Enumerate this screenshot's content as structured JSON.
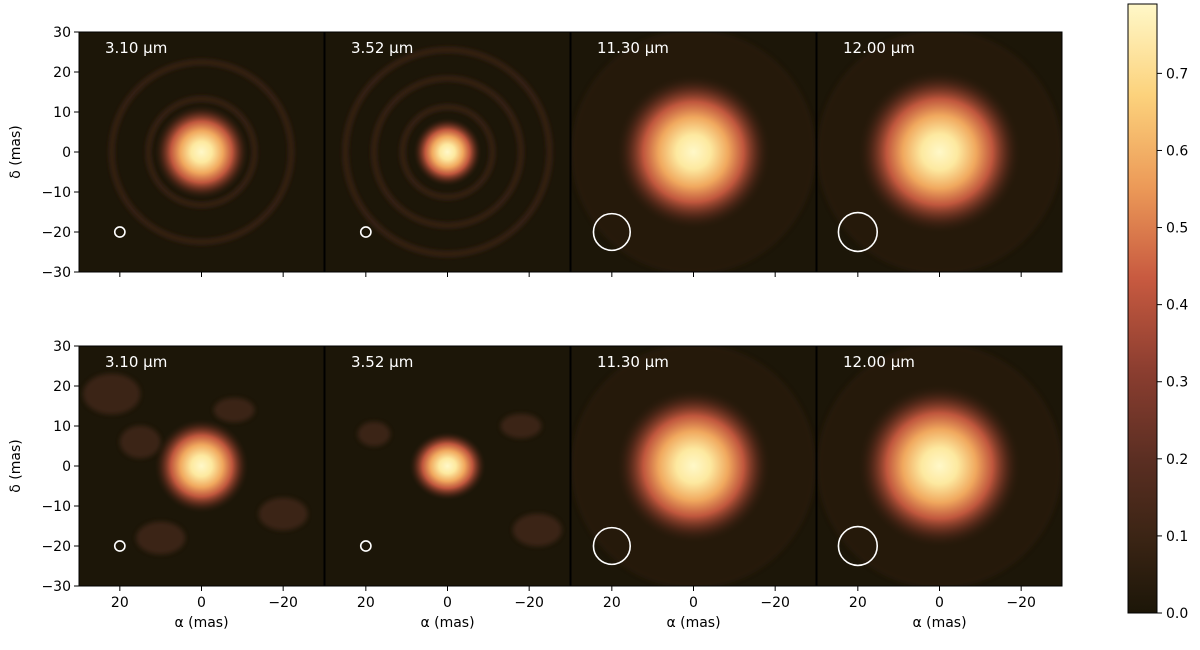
{
  "chart_data": {
    "type": "heatmap",
    "xlabel": "α (mas)",
    "ylabel": "δ (mas)",
    "xlim": [
      30,
      -30
    ],
    "ylim": [
      -30,
      30
    ],
    "x_ticks": [
      20,
      0,
      -20
    ],
    "x_tick_labels": [
      "20",
      "0",
      "−20"
    ],
    "y_ticks": [
      30,
      20,
      10,
      0,
      -10,
      -20,
      -30
    ],
    "y_tick_labels": [
      "30",
      "20",
      "10",
      "0",
      "−10",
      "−20",
      "−30"
    ],
    "colormap": "afmhot-like",
    "colors": {
      "low": "#1c1608",
      "mid": "#c85a40",
      "high": "#fff8c8",
      "beam": "#ffffff"
    },
    "colorbar": {
      "range": [
        0.0,
        0.79
      ],
      "ticks": [
        0.0,
        0.1,
        0.2,
        0.3,
        0.4,
        0.5,
        0.6,
        0.7
      ],
      "tick_labels": [
        "0.0",
        "0.1",
        "0.2",
        "0.3",
        "0.4",
        "0.5",
        "0.6",
        "0.7"
      ]
    },
    "rows": [
      {
        "panels": [
          {
            "label": "3.10 μm",
            "peak": 0.79,
            "fwhm_mas": 11,
            "rings": true,
            "beam": {
              "x": 20,
              "y": -20,
              "d": 2.5
            }
          },
          {
            "label": "3.52 μm",
            "peak": 0.79,
            "fwhm_mas": 8,
            "rings": true,
            "beam": {
              "x": 20,
              "y": -20,
              "d": 2.5
            }
          },
          {
            "label": "11.30 μm",
            "peak": 0.79,
            "fwhm_mas": 18,
            "rings": false,
            "beam": {
              "x": 20,
              "y": -20,
              "d": 9
            }
          },
          {
            "label": "12.00 μm",
            "peak": 0.79,
            "fwhm_mas": 19,
            "rings": false,
            "beam": {
              "x": 20,
              "y": -20,
              "d": 9.5
            }
          }
        ]
      },
      {
        "panels": [
          {
            "label": "3.10 μm",
            "peak": 0.79,
            "fwhm_mas": 11,
            "rings": false,
            "beam": {
              "x": 20,
              "y": -20,
              "d": 2.5
            }
          },
          {
            "label": "3.52 μm",
            "peak": 0.79,
            "fwhm_mas": 8,
            "rings": false,
            "beam": {
              "x": 20,
              "y": -20,
              "d": 2.5
            }
          },
          {
            "label": "11.30 μm",
            "peak": 0.79,
            "fwhm_mas": 18,
            "rings": false,
            "beam": {
              "x": 20,
              "y": -20,
              "d": 9
            }
          },
          {
            "label": "12.00 μm",
            "peak": 0.79,
            "fwhm_mas": 19,
            "rings": false,
            "beam": {
              "x": 20,
              "y": -20,
              "d": 9.5
            }
          }
        ]
      }
    ]
  }
}
